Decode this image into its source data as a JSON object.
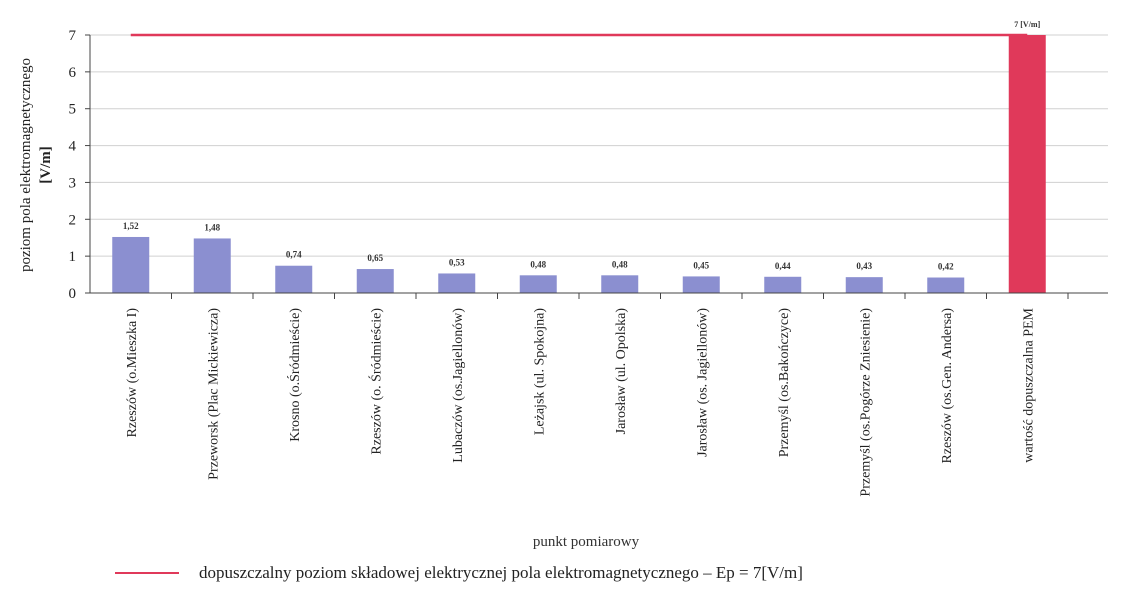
{
  "chart_data": {
    "type": "bar",
    "ylabel": "poziom pola elektromagnetycznego [V/m]",
    "xlabel": "punkt pomiarowy",
    "ylim": [
      0,
      7
    ],
    "yticks": [
      "0",
      "1",
      "2",
      "3",
      "4",
      "5",
      "6",
      "7"
    ],
    "grid": true,
    "categories": [
      "Rzeszów (o.Mieszka I)",
      "Przeworsk (Plac Mickiewicza)",
      "Krosno (o.Śródmieście)",
      "Rzeszów (o. Śródmieście)",
      "Lubaczów (os.Jagiellonów)",
      "Leżajsk (ul. Spokojna)",
      "Jarosław (ul. Opolska)",
      "Jarosław (os. Jagiellonów)",
      "Przemyśl (os.Bakończyce)",
      "Przemyśl (os.Pogórze Zniesienie)",
      "Rzeszów (os.Gen. Andersa)",
      "wartość dopuszczalna PEM"
    ],
    "values": [
      1.52,
      1.48,
      0.74,
      0.65,
      0.53,
      0.48,
      0.48,
      0.45,
      0.44,
      0.43,
      0.42,
      7
    ],
    "data_labels": [
      "1,52",
      "1,48",
      "0,74",
      "0,65",
      "0,53",
      "0,48",
      "0,48",
      "0,45",
      "0,44",
      "0,43",
      "0,42",
      "7 [V/m]"
    ],
    "colors": {
      "bar": "#8b8fd0",
      "limit_bar": "#e0395a",
      "limit_line": "#e0395a",
      "grid": "#d0d0d0"
    },
    "limit_line": {
      "value": 7
    },
    "legend": {
      "position": "bottom-left",
      "entries": [
        "dopuszczalny poziom składowej elektrycznej pola elektromagnetycznego – Ep = 7[V/m]"
      ]
    }
  }
}
